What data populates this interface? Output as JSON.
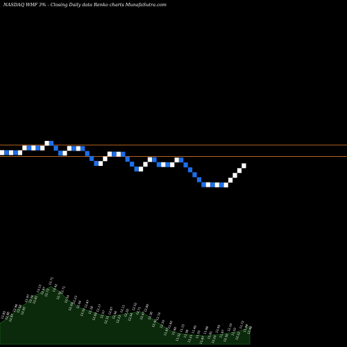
{
  "header": {
    "title": "NASDAQ WHF 3% -   Closing Daily data  Renko  charts MunafaSutra.com"
  },
  "colors": {
    "background": "#000000",
    "up_brick": "#ffffff",
    "down_brick": "#1e6fe8",
    "reference_line": "#b8631f",
    "volume_fill": "#0b2a0b",
    "volume_edge": "#1d5a1d",
    "label_text": "#ffffff"
  },
  "chart_data": {
    "type": "renko",
    "title": "NASDAQ WHF 3% -   Closing Daily data  Renko  charts MunafaSutra.com",
    "brick_size_pct": 3,
    "reference_lines": [
      13.8,
      12.86
    ],
    "bricks": [
      {
        "dir": "up",
        "close": 13.37
      },
      {
        "dir": "down",
        "close": 12.97
      },
      {
        "dir": "up",
        "close": 13.36
      },
      {
        "dir": "down",
        "close": 12.97
      },
      {
        "dir": "up",
        "close": 13.36
      },
      {
        "dir": "up",
        "close": 13.76
      },
      {
        "dir": "down",
        "close": 13.35
      },
      {
        "dir": "up",
        "close": 13.76
      },
      {
        "dir": "down",
        "close": 13.35
      },
      {
        "dir": "up",
        "close": 13.75
      },
      {
        "dir": "up",
        "close": 14.16
      },
      {
        "dir": "down",
        "close": 13.74
      },
      {
        "dir": "down",
        "close": 13.33
      },
      {
        "dir": "down",
        "close": 12.93
      },
      {
        "dir": "up",
        "close": 13.32
      },
      {
        "dir": "up",
        "close": 13.72
      },
      {
        "dir": "down",
        "close": 13.31
      },
      {
        "dir": "up",
        "close": 13.71
      },
      {
        "dir": "down",
        "close": 13.3
      },
      {
        "dir": "down",
        "close": 12.9
      },
      {
        "dir": "down",
        "close": 12.51
      },
      {
        "dir": "down",
        "close": 12.13
      },
      {
        "dir": "up",
        "close": 12.49
      },
      {
        "dir": "up",
        "close": 12.86
      },
      {
        "dir": "up",
        "close": 13.25
      },
      {
        "dir": "down",
        "close": 12.85
      },
      {
        "dir": "up",
        "close": 13.24
      },
      {
        "dir": "down",
        "close": 12.84
      },
      {
        "dir": "down",
        "close": 12.45
      },
      {
        "dir": "down",
        "close": 12.08
      },
      {
        "dir": "down",
        "close": 11.72
      },
      {
        "dir": "up",
        "close": 12.07
      },
      {
        "dir": "up",
        "close": 12.43
      },
      {
        "dir": "up",
        "close": 12.8
      },
      {
        "dir": "down",
        "close": 12.42
      },
      {
        "dir": "down",
        "close": 12.05
      },
      {
        "dir": "up",
        "close": 12.41
      },
      {
        "dir": "down",
        "close": 12.04
      },
      {
        "dir": "up",
        "close": 12.4
      },
      {
        "dir": "up",
        "close": 12.77
      },
      {
        "dir": "down",
        "close": 12.39
      },
      {
        "dir": "down",
        "close": 12.02
      },
      {
        "dir": "down",
        "close": 11.66
      },
      {
        "dir": "down",
        "close": 11.31
      },
      {
        "dir": "down",
        "close": 10.97
      },
      {
        "dir": "down",
        "close": 10.64
      },
      {
        "dir": "up",
        "close": 10.96
      },
      {
        "dir": "down",
        "close": 10.63
      },
      {
        "dir": "up",
        "close": 10.95
      },
      {
        "dir": "down",
        "close": 10.62
      },
      {
        "dir": "up",
        "close": 10.94
      },
      {
        "dir": "up",
        "close": 11.27
      },
      {
        "dir": "up",
        "close": 11.61
      },
      {
        "dir": "up",
        "close": 11.96
      },
      {
        "dir": "up",
        "close": 12.32
      }
    ],
    "volume_profile": [
      30,
      34,
      40,
      44,
      50,
      54,
      58,
      64,
      70,
      72,
      76,
      80,
      83,
      80,
      76,
      70,
      64,
      60,
      56,
      52,
      50,
      48,
      46,
      44,
      42,
      41,
      40,
      41,
      42,
      43,
      44,
      45,
      46,
      47,
      44,
      40,
      36,
      32,
      28,
      24,
      20,
      18,
      16,
      15,
      14,
      14,
      13,
      13,
      12,
      12,
      13,
      14,
      14,
      15,
      16,
      17,
      18,
      20,
      22,
      26
    ],
    "data_labels": [
      "12.85",
      "12.86",
      "12.97",
      "12.96",
      "12.58",
      "12.95",
      "12.97",
      "12.76",
      "12.81",
      "13.13",
      "12.97",
      "12.73",
      "12.71",
      "13.42",
      "12.70",
      "12.71",
      "12.54",
      "12.20",
      "12.23",
      "12.04",
      "13.54",
      "12.87",
      "12.18",
      "12.69",
      "12.17",
      "12.57",
      "12.31",
      "12.87",
      "12.56",
      "12.23",
      "12.11",
      "12.20",
      "12.54",
      "12.52",
      "12.71",
      "12.47",
      "12.80",
      "12.36",
      "12.42",
      "12.74",
      "12.20",
      "11.87",
      "11.82",
      "11.60",
      "11.52",
      "11.15",
      "11.38",
      "11.21",
      "11.49",
      "11.55",
      "11.87",
      "11.68",
      "11.81",
      "12.25",
      "12.05",
      "11.97",
      "12.30",
      "12.10",
      "11.52",
      "12.22",
      "11.72",
      "11.88",
      "12.48"
    ]
  }
}
